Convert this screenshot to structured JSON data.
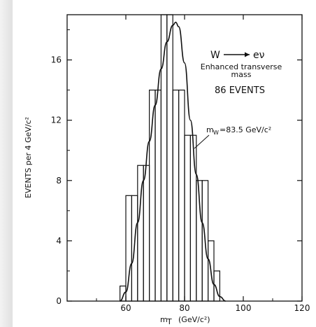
{
  "chart_data": {
    "type": "histogram",
    "title_process": "W",
    "title_products": "eν",
    "subtitle_line1": "Enhanced transverse",
    "subtitle_line2": "mass",
    "event_count_label": "86 EVENTS",
    "fit_label": "m",
    "fit_label_sub": "W",
    "fit_label_value": "=83.5 GeV/c²",
    "xlabel": "m",
    "xlabel_sub": "T",
    "xlabel_unit": "(GeV/c²)",
    "ylabel": "EVENTS per 4 GeV/c²",
    "xlim": [
      40,
      120
    ],
    "ylim": [
      0,
      19
    ],
    "x_ticks": [
      60,
      80,
      100,
      120
    ],
    "y_ticks": [
      0,
      4,
      8,
      12,
      16
    ],
    "bins": {
      "edges": [
        58,
        60,
        62,
        64,
        66,
        68,
        70,
        72,
        74,
        76,
        78,
        80,
        82,
        84,
        86,
        88,
        90,
        92,
        94
      ],
      "values": [
        1,
        7,
        7,
        9,
        9,
        14,
        14,
        19,
        19,
        14,
        14,
        11,
        11,
        8,
        8,
        4,
        2,
        0
      ]
    },
    "fit_curve": {
      "x": [
        58,
        60,
        62,
        64,
        66,
        68,
        70,
        72,
        74,
        76,
        77,
        78,
        80,
        82,
        84,
        86,
        88,
        90,
        92,
        94
      ],
      "y": [
        0,
        0.6,
        2.5,
        5.2,
        8.0,
        10.6,
        13.0,
        15.4,
        17.2,
        18.3,
        18.5,
        18.2,
        15.8,
        12.0,
        8.4,
        5.2,
        2.8,
        1.1,
        0.3,
        0
      ]
    }
  }
}
